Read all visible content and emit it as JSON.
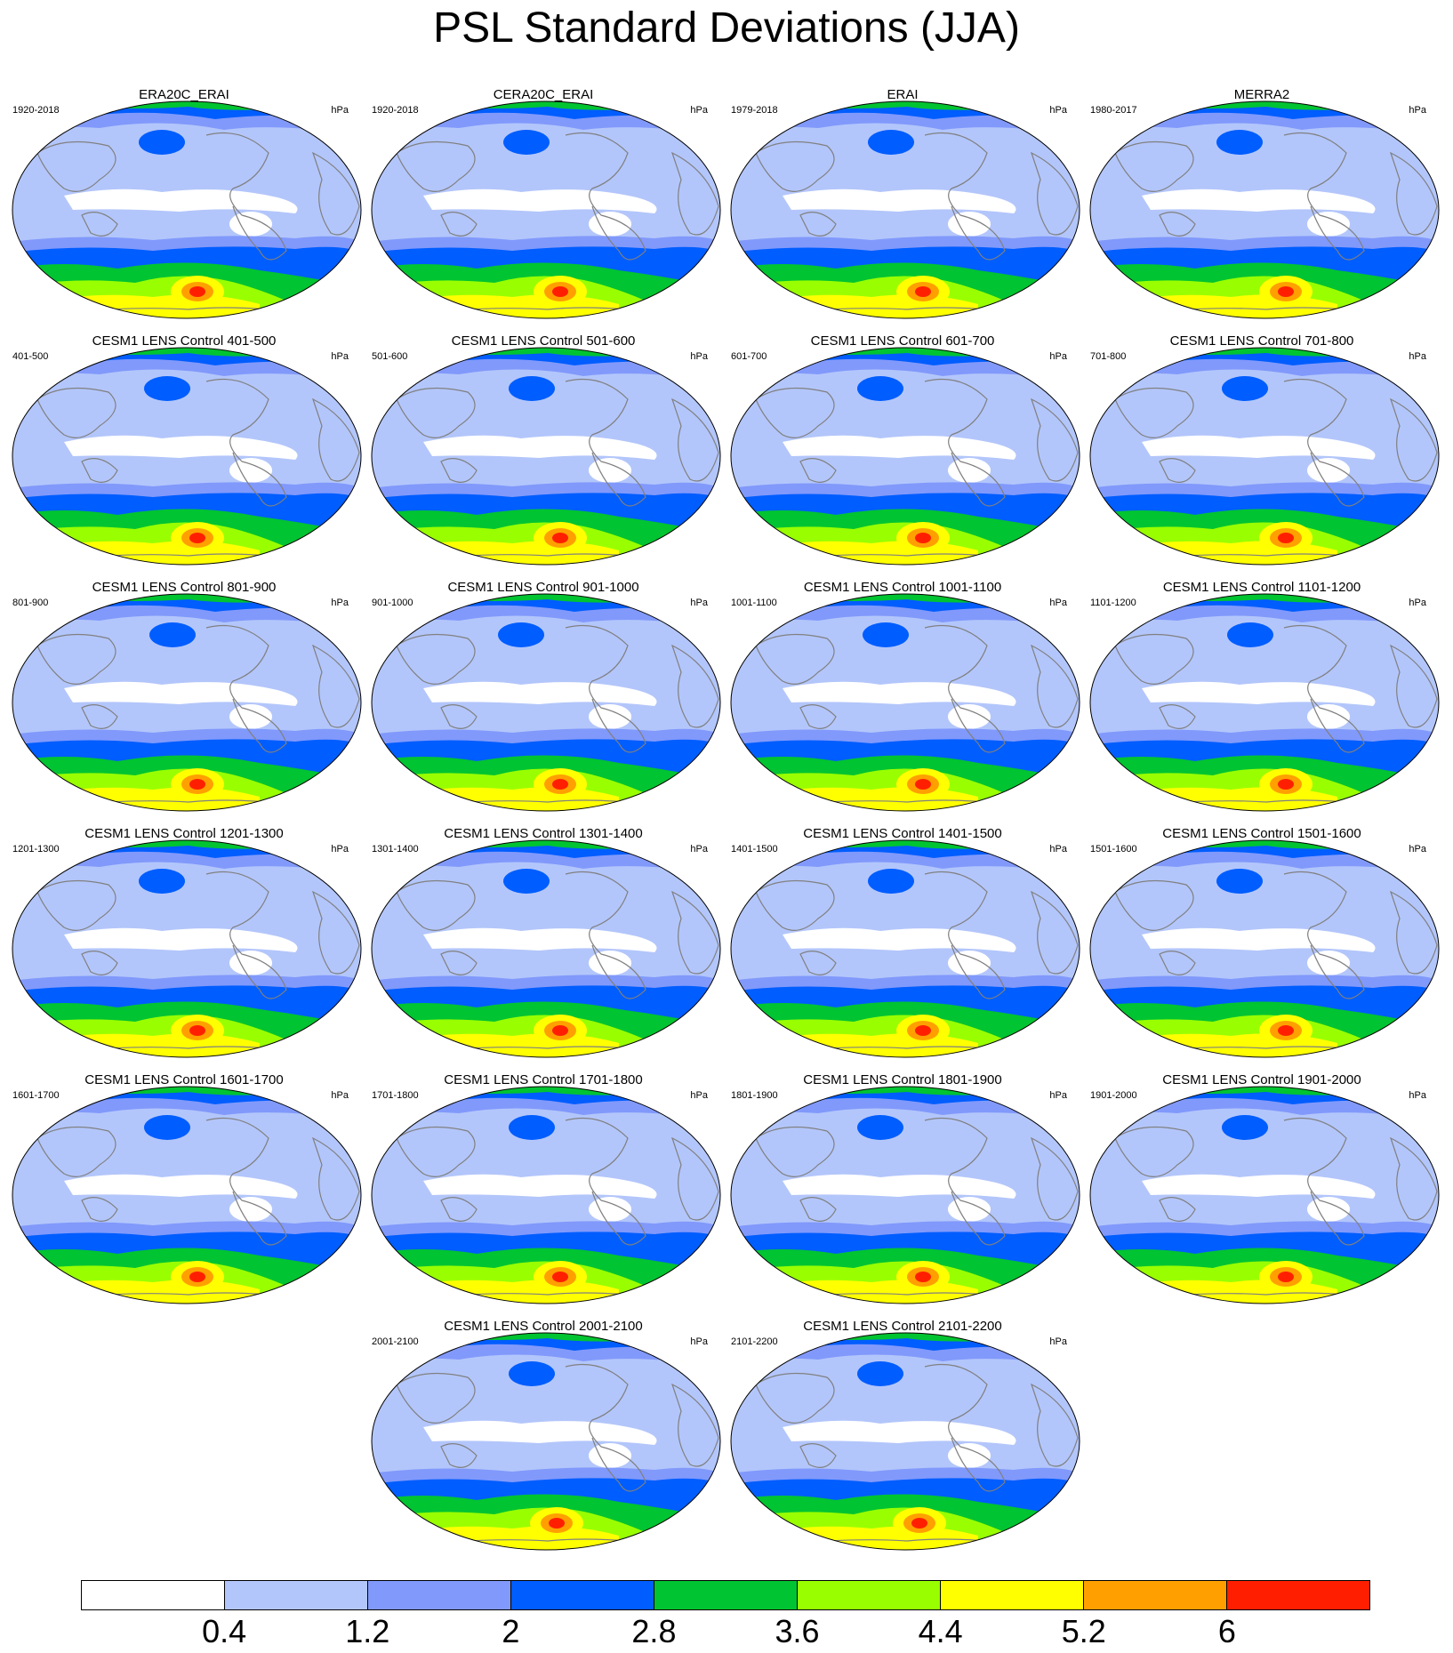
{
  "title": "PSL Standard Deviations (JJA)",
  "panels": [
    {
      "title": "ERA20C_ERAI",
      "period": "1920-2018",
      "unit": "hPa"
    },
    {
      "title": "CERA20C_ERAI",
      "period": "1920-2018",
      "unit": "hPa"
    },
    {
      "title": "ERAI",
      "period": "1979-2018",
      "unit": "hPa"
    },
    {
      "title": "MERRA2",
      "period": "1980-2017",
      "unit": "hPa"
    },
    {
      "title": "CESM1 LENS Control 401-500",
      "period": "401-500",
      "unit": "hPa"
    },
    {
      "title": "CESM1 LENS Control 501-600",
      "period": "501-600",
      "unit": "hPa"
    },
    {
      "title": "CESM1 LENS Control 601-700",
      "period": "601-700",
      "unit": "hPa"
    },
    {
      "title": "CESM1 LENS Control 701-800",
      "period": "701-800",
      "unit": "hPa"
    },
    {
      "title": "CESM1 LENS Control 801-900",
      "period": "801-900",
      "unit": "hPa"
    },
    {
      "title": "CESM1 LENS Control 901-1000",
      "period": "901-1000",
      "unit": "hPa"
    },
    {
      "title": "CESM1 LENS Control 1001-1100",
      "period": "1001-1100",
      "unit": "hPa"
    },
    {
      "title": "CESM1 LENS Control 1101-1200",
      "period": "1101-1200",
      "unit": "hPa"
    },
    {
      "title": "CESM1 LENS Control 1201-1300",
      "period": "1201-1300",
      "unit": "hPa"
    },
    {
      "title": "CESM1 LENS Control 1301-1400",
      "period": "1301-1400",
      "unit": "hPa"
    },
    {
      "title": "CESM1 LENS Control 1401-1500",
      "period": "1401-1500",
      "unit": "hPa"
    },
    {
      "title": "CESM1 LENS Control 1501-1600",
      "period": "1501-1600",
      "unit": "hPa"
    },
    {
      "title": "CESM1 LENS Control 1601-1700",
      "period": "1601-1700",
      "unit": "hPa"
    },
    {
      "title": "CESM1 LENS Control 1701-1800",
      "period": "1701-1800",
      "unit": "hPa"
    },
    {
      "title": "CESM1 LENS Control 1801-1900",
      "period": "1801-1900",
      "unit": "hPa"
    },
    {
      "title": "CESM1 LENS Control 1901-2000",
      "period": "1901-2000",
      "unit": "hPa"
    },
    {
      "title": "CESM1 LENS Control 2001-2100",
      "period": "2001-2100",
      "unit": "hPa"
    },
    {
      "title": "CESM1 LENS Control 2101-2200",
      "period": "2101-2200",
      "unit": "hPa"
    }
  ],
  "colorbar": {
    "colors": [
      "#ffffff",
      "#b3c6fb",
      "#8199fb",
      "#005dff",
      "#00c431",
      "#99ff00",
      "#ffff00",
      "#ffa000",
      "#ff1f00"
    ],
    "labels": [
      "0.4",
      "1.2",
      "2",
      "2.8",
      "3.6",
      "4.4",
      "5.2",
      "6"
    ]
  }
}
